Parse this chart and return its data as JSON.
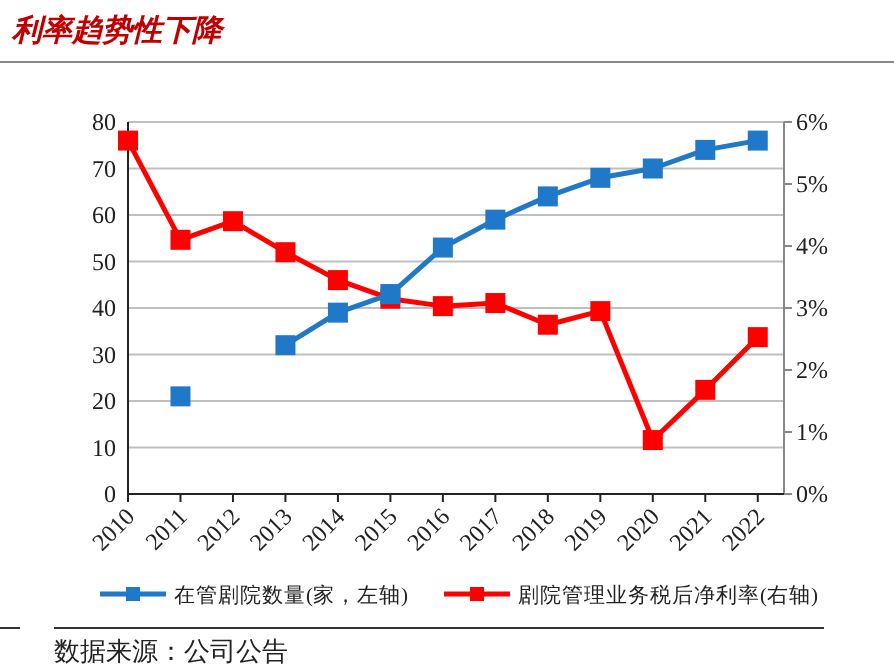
{
  "chart_data": {
    "type": "line",
    "title": "利率趋势性下降",
    "categories": [
      "2010",
      "2011",
      "2012",
      "2013",
      "2014",
      "2015",
      "2016",
      "2017",
      "2018",
      "2019",
      "2020",
      "2021",
      "2022"
    ],
    "series": [
      {
        "name": "在管剧院数量(家，左轴)",
        "color": "#1f78c8",
        "values": [
          null,
          21,
          null,
          32,
          39,
          43,
          53,
          59,
          64,
          68,
          70,
          74,
          76
        ]
      },
      {
        "name": "剧院管理业务税后净利率(右轴)",
        "color": "#ff0000",
        "axis": "y2",
        "values": [
          5.7,
          4.1,
          4.4,
          3.9,
          3.45,
          3.15,
          3.03,
          3.08,
          2.73,
          2.95,
          0.87,
          1.68,
          2.53
        ]
      }
    ],
    "ylim": [
      0,
      80
    ],
    "yticks": [
      0,
      10,
      20,
      30,
      40,
      50,
      60,
      70,
      80
    ],
    "y2lim": [
      0,
      6
    ],
    "y2ticks": [
      {
        "value": 0,
        "label": "0%"
      },
      {
        "value": 1,
        "label": "1%"
      },
      {
        "value": 2,
        "label": "2%"
      },
      {
        "value": 3,
        "label": "3%"
      },
      {
        "value": 4,
        "label": "4%"
      },
      {
        "value": 5,
        "label": "5%"
      },
      {
        "value": 6,
        "label": "6%"
      }
    ],
    "grid": "y",
    "legend": "bottom",
    "marker": "square",
    "line_style": "solid",
    "annotations": [
      "数据来源：公司公告"
    ]
  }
}
